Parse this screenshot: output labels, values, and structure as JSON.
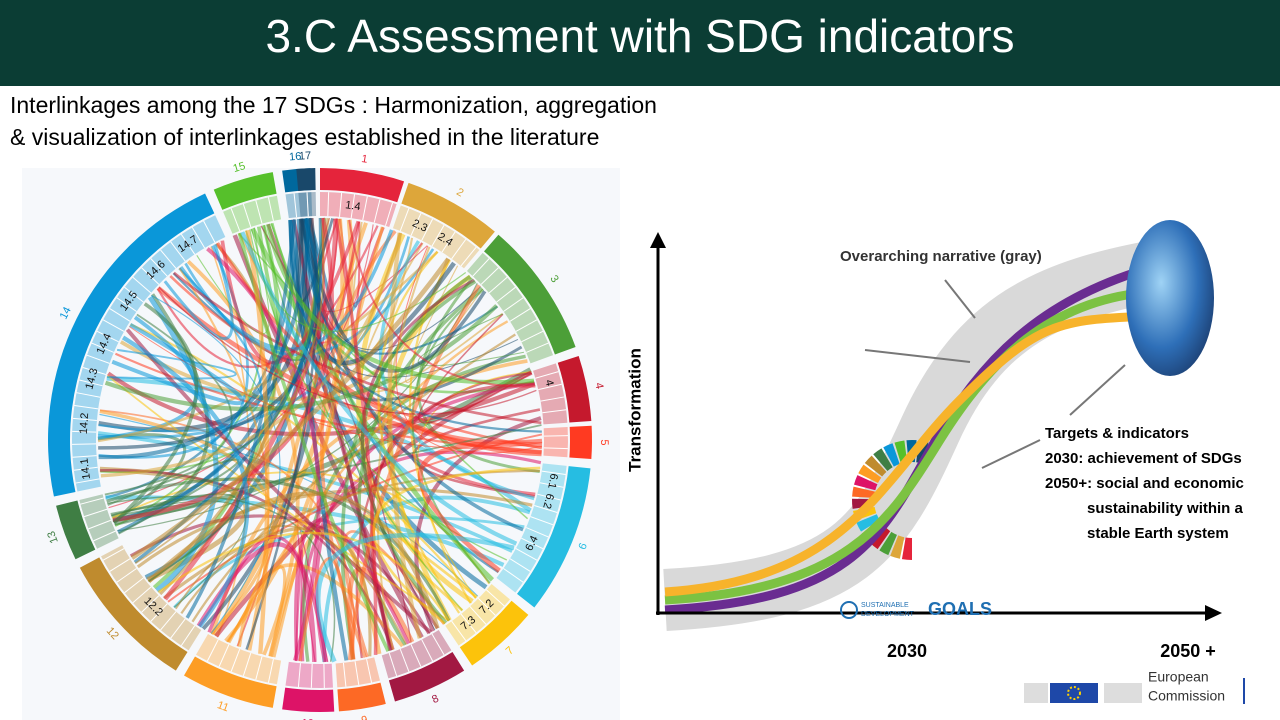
{
  "header": {
    "title": "3.C Assessment with SDG indicators"
  },
  "subtitle": {
    "lines": [
      "Interlinkages among the 17 SDGs : Harmonization, aggregation",
      "& visualization of interlinkages established in the literature"
    ]
  },
  "sdg_wheel": {
    "goals": [
      {
        "label": "1",
        "color": "#e5243b"
      },
      {
        "label": "2",
        "color": "#dda63a"
      },
      {
        "label": "3",
        "color": "#4c9f38"
      },
      {
        "label": "4",
        "color": "#c5192d"
      },
      {
        "label": "5",
        "color": "#ff3a21"
      },
      {
        "label": "6",
        "color": "#26bde2"
      },
      {
        "label": "7",
        "color": "#fcc30b"
      },
      {
        "label": "8",
        "color": "#a21942"
      },
      {
        "label": "9",
        "color": "#fd6925"
      },
      {
        "label": "10",
        "color": "#dd1367"
      },
      {
        "label": "11",
        "color": "#fd9d24"
      },
      {
        "label": "12",
        "color": "#bf8b2e"
      },
      {
        "label": "13",
        "color": "#3f7e44"
      },
      {
        "label": "14",
        "color": "#0a97d9"
      },
      {
        "label": "15",
        "color": "#56c02b"
      },
      {
        "label": "16",
        "color": "#00689d"
      },
      {
        "label": "17",
        "color": "#19486a"
      }
    ],
    "targets": [
      "1.4",
      "2.3",
      "2.4",
      "4",
      "6.1",
      "6.2",
      "6.4",
      "7.2",
      "7.3",
      "12.2",
      "14.1",
      "14.2",
      "14.3",
      "14.4",
      "14.5",
      "14.6",
      "14.7"
    ]
  },
  "transformation_diagram": {
    "y_axis_label": "Transformation",
    "x_labels": [
      "2030",
      "2050 +"
    ],
    "narrative_label": "Overarching narrative (gray)",
    "targets_text": [
      "Targets & indicators",
      "2030: achievement of SDGs",
      "2050+: social and economic",
      "sustainability within a",
      "stable Earth system"
    ],
    "logo": [
      "SUSTAINABLE",
      "DEVELOPMENT",
      "GOALS"
    ]
  },
  "footer": {
    "organization": [
      "European",
      "Commission"
    ]
  }
}
